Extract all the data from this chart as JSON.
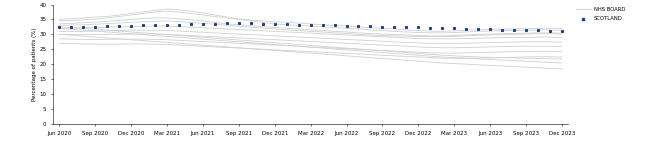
{
  "ylabel": "Percentage of patients (%)",
  "ylim": [
    0,
    40
  ],
  "yticks": [
    0,
    5,
    10,
    15,
    20,
    25,
    30,
    35,
    40
  ],
  "x_labels": [
    "Jun 2020",
    "Sep 2020",
    "Dec 2020",
    "Mar 2021",
    "Jun 2021",
    "Sep 2021",
    "Dec 2021",
    "Mar 2022",
    "Jun 2022",
    "Sep 2022",
    "Dec 2022",
    "Mar 2023",
    "Jun 2023",
    "Sep 2023",
    "Dec 2023"
  ],
  "scotland_monthly": [
    32.3,
    32.4,
    32.5,
    32.6,
    32.7,
    32.8,
    32.9,
    33.0,
    33.1,
    33.2,
    33.3,
    33.4,
    33.5,
    33.6,
    33.7,
    33.8,
    33.7,
    33.6,
    33.5,
    33.4,
    33.3,
    33.2,
    33.1,
    33.0,
    32.9,
    32.8,
    32.7,
    32.6,
    32.5,
    32.4,
    32.3,
    32.2,
    32.1,
    32.0,
    31.9,
    31.8,
    31.7,
    31.6,
    31.5,
    31.4,
    31.3,
    31.2,
    31.1,
    31.0,
    30.9,
    30.8,
    30.7,
    30.6,
    30.5,
    30.4,
    30.3,
    30.2,
    30.1,
    30.0,
    29.9,
    29.8
  ],
  "nhs_boards": [
    [
      35.0,
      35.3,
      35.5,
      35.8,
      36.0,
      36.5,
      37.0,
      37.5,
      38.0,
      38.5,
      38.2,
      37.8,
      37.2,
      36.5,
      35.8,
      35.2,
      34.8,
      34.5,
      34.2,
      34.0,
      33.8,
      33.5,
      33.2,
      33.0,
      32.8,
      32.5,
      32.2,
      32.0,
      31.8,
      31.5,
      31.3,
      31.1,
      31.0,
      31.2,
      31.4,
      31.5,
      31.6,
      31.7,
      31.8,
      31.9,
      32.0,
      32.1,
      32.0,
      31.9,
      31.8,
      31.7,
      31.6,
      31.5,
      31.4,
      31.3,
      31.2,
      31.1,
      31.0,
      31.0,
      31.0,
      31.0
    ],
    [
      34.5,
      34.7,
      34.9,
      35.1,
      35.5,
      36.0,
      36.5,
      37.0,
      37.5,
      37.8,
      37.5,
      37.0,
      36.5,
      36.0,
      35.5,
      35.0,
      34.5,
      34.0,
      33.5,
      33.2,
      33.0,
      32.8,
      32.5,
      32.3,
      32.0,
      31.8,
      31.5,
      31.3,
      31.0,
      30.8,
      30.6,
      30.5,
      30.5,
      30.6,
      30.8,
      31.0,
      31.1,
      31.2,
      31.3,
      31.4,
      31.5,
      31.5,
      31.4,
      31.3,
      31.2,
      31.1,
      31.0,
      30.9,
      30.8,
      30.7,
      30.6,
      30.5,
      30.5,
      30.5,
      30.5,
      30.5
    ],
    [
      33.5,
      33.7,
      33.9,
      34.1,
      34.4,
      34.7,
      35.0,
      35.3,
      35.5,
      35.5,
      35.2,
      34.9,
      34.5,
      34.0,
      33.5,
      33.2,
      32.9,
      32.6,
      32.3,
      32.0,
      31.8,
      31.5,
      31.3,
      31.0,
      30.8,
      30.5,
      30.3,
      30.1,
      30.0,
      29.8,
      29.6,
      29.5,
      29.5,
      29.6,
      29.8,
      30.0,
      30.1,
      30.2,
      30.3,
      30.4,
      30.5,
      30.5,
      30.4,
      30.3,
      30.2,
      30.1,
      30.0,
      29.9,
      29.8,
      29.8,
      29.8,
      29.8,
      29.8,
      29.8,
      29.8,
      29.8
    ],
    [
      33.0,
      33.1,
      33.2,
      33.4,
      33.6,
      33.8,
      34.0,
      34.2,
      34.4,
      34.5,
      34.3,
      34.0,
      33.7,
      33.4,
      33.0,
      32.7,
      32.4,
      32.1,
      31.8,
      31.5,
      31.3,
      31.0,
      30.8,
      30.5,
      30.3,
      30.0,
      29.8,
      29.6,
      29.5,
      29.4,
      29.3,
      29.2,
      29.2,
      29.3,
      29.5,
      29.7,
      29.8,
      29.9,
      30.0,
      30.1,
      30.2,
      30.2,
      30.1,
      30.0,
      29.9,
      29.8,
      29.7,
      29.6,
      29.5,
      29.5,
      29.5,
      29.5,
      29.5,
      29.5,
      29.5,
      29.5
    ],
    [
      32.0,
      32.1,
      32.2,
      32.3,
      32.4,
      32.5,
      32.6,
      32.7,
      32.8,
      32.8,
      32.6,
      32.4,
      32.2,
      32.0,
      31.8,
      31.6,
      31.4,
      31.2,
      31.0,
      30.8,
      30.6,
      30.4,
      30.2,
      30.0,
      29.8,
      29.6,
      29.4,
      29.2,
      29.0,
      28.8,
      28.6,
      28.5,
      28.5,
      28.5,
      28.6,
      28.7,
      28.8,
      28.9,
      29.0,
      29.0,
      29.1,
      29.1,
      29.0,
      28.9,
      28.8,
      28.7,
      28.6,
      28.5,
      28.4,
      28.3,
      28.2,
      28.1,
      28.0,
      28.0,
      28.0,
      28.0
    ],
    [
      31.0,
      31.0,
      31.0,
      31.1,
      31.2,
      31.3,
      31.4,
      31.4,
      31.4,
      31.3,
      31.1,
      30.9,
      30.7,
      30.5,
      30.3,
      30.1,
      29.9,
      29.7,
      29.5,
      29.3,
      29.1,
      28.9,
      28.7,
      28.5,
      28.3,
      28.1,
      27.9,
      27.7,
      27.5,
      27.3,
      27.1,
      27.0,
      27.0,
      27.0,
      27.0,
      27.1,
      27.2,
      27.3,
      27.4,
      27.5,
      27.5,
      27.5,
      27.4,
      27.3,
      27.2,
      27.1,
      27.0,
      26.9,
      26.8,
      26.7,
      26.6,
      26.5,
      26.5,
      26.5,
      26.5,
      26.5
    ],
    [
      30.0,
      30.0,
      30.0,
      30.0,
      30.0,
      30.0,
      30.1,
      30.1,
      30.1,
      30.0,
      29.8,
      29.6,
      29.4,
      29.2,
      29.0,
      28.8,
      28.6,
      28.4,
      28.2,
      28.0,
      27.8,
      27.6,
      27.4,
      27.2,
      27.0,
      26.8,
      26.6,
      26.4,
      26.2,
      26.0,
      25.8,
      25.6,
      25.5,
      25.5,
      25.6,
      25.7,
      25.8,
      25.9,
      26.0,
      26.0,
      26.0,
      26.0,
      25.9,
      25.8,
      25.7,
      25.6,
      25.5,
      25.4,
      25.3,
      25.2,
      25.1,
      25.0,
      25.0,
      25.0,
      25.0,
      25.0
    ],
    [
      28.5,
      28.4,
      28.3,
      28.3,
      28.3,
      28.4,
      28.4,
      28.4,
      28.3,
      28.2,
      28.0,
      27.8,
      27.6,
      27.4,
      27.2,
      27.0,
      26.8,
      26.6,
      26.4,
      26.2,
      26.0,
      25.8,
      25.6,
      25.4,
      25.2,
      25.0,
      24.8,
      24.6,
      24.4,
      24.2,
      24.0,
      23.8,
      23.7,
      23.7,
      23.8,
      23.9,
      24.0,
      24.1,
      24.2,
      24.2,
      24.3,
      24.3,
      24.2,
      24.1,
      24.0,
      23.9,
      23.8,
      23.7,
      23.6,
      23.5,
      23.4,
      23.3,
      23.2,
      23.1,
      23.0,
      23.0
    ],
    [
      27.0,
      26.9,
      26.8,
      26.7,
      26.7,
      26.7,
      26.8,
      26.8,
      26.7,
      26.6,
      26.4,
      26.2,
      26.0,
      25.8,
      25.6,
      25.4,
      25.2,
      25.0,
      24.8,
      24.6,
      24.4,
      24.2,
      24.0,
      23.8,
      23.6,
      23.4,
      23.2,
      23.0,
      22.8,
      22.6,
      22.4,
      22.2,
      22.0,
      22.0,
      22.0,
      22.0,
      22.1,
      22.2,
      22.3,
      22.4,
      22.5,
      22.5,
      22.4,
      22.3,
      22.2,
      22.1,
      22.0,
      21.9,
      21.8,
      21.7,
      21.6,
      21.5,
      21.4,
      21.3,
      21.2,
      21.1
    ],
    [
      32.5,
      32.3,
      32.0,
      31.7,
      31.4,
      31.1,
      30.8,
      30.5,
      30.2,
      29.9,
      29.6,
      29.3,
      29.0,
      28.7,
      28.4,
      28.1,
      27.8,
      27.5,
      27.2,
      26.9,
      26.6,
      26.3,
      26.0,
      25.7,
      25.4,
      25.1,
      24.8,
      24.5,
      24.2,
      23.9,
      23.6,
      23.3,
      23.0,
      22.8,
      22.6,
      22.4,
      22.3,
      22.2,
      22.1,
      22.0,
      21.9,
      21.8,
      21.7,
      21.6,
      21.5,
      21.4,
      21.3,
      21.2,
      21.1,
      21.0,
      20.9,
      20.8,
      20.7,
      20.6,
      20.5,
      20.4
    ],
    [
      32.0,
      31.7,
      31.4,
      31.1,
      30.8,
      30.5,
      30.2,
      29.9,
      29.6,
      29.3,
      29.0,
      28.7,
      28.4,
      28.1,
      27.8,
      27.5,
      27.2,
      26.9,
      26.6,
      26.3,
      26.0,
      25.7,
      25.4,
      25.1,
      24.8,
      24.5,
      24.2,
      23.9,
      23.6,
      23.3,
      23.0,
      22.7,
      22.4,
      22.2,
      22.0,
      21.8,
      21.6,
      21.4,
      21.2,
      21.0,
      20.8,
      20.6,
      20.4,
      20.2,
      20.0,
      19.8,
      19.6,
      19.4,
      19.2,
      19.0,
      18.8,
      18.6,
      18.4,
      18.2,
      18.0,
      17.8
    ],
    [
      30.0,
      29.7,
      29.4,
      29.1,
      28.8,
      28.5,
      28.2,
      27.9,
      27.6,
      27.3,
      27.0,
      26.7,
      26.4,
      26.1,
      25.8,
      25.5,
      25.2,
      24.9,
      24.6,
      24.3,
      24.0,
      23.7,
      23.4,
      23.1,
      22.8,
      22.5,
      22.2,
      21.9,
      21.6,
      21.3,
      21.0,
      20.7,
      20.4,
      20.2,
      20.0,
      19.8,
      19.6,
      19.4,
      19.2,
      19.0,
      18.8,
      18.6,
      18.4,
      18.2,
      18.0,
      17.8,
      17.6,
      17.4,
      17.2,
      17.0,
      16.8,
      16.6,
      16.4,
      16.2,
      16.0,
      15.8
    ]
  ],
  "board_color": "#d0d0d0",
  "scotland_color": "#1f3f7a",
  "legend_board_label": "NHS BOARD",
  "legend_scotland_label": "SCOTLAND",
  "background_color": "#ffffff",
  "figsize": [
    6.68,
    1.51
  ],
  "dpi": 100,
  "n_months": 56
}
